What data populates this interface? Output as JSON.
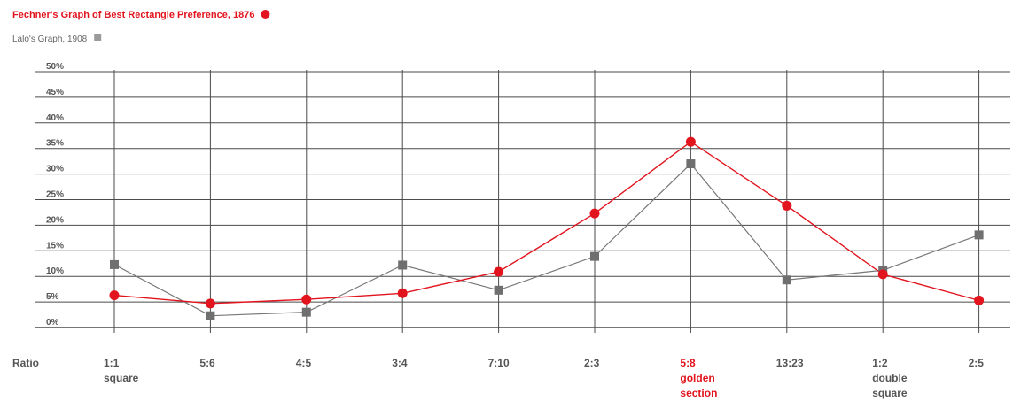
{
  "chart_data": {
    "type": "line",
    "legend": [
      {
        "label": "Fechner's Graph of Best Rectangle Preference, 1876",
        "color": "#e2141e",
        "marker": "circle"
      },
      {
        "label": "Lalo's Graph, 1908",
        "color": "#777777",
        "marker": "square"
      }
    ],
    "legend_placement": "top-left",
    "categories": [
      "1:1",
      "5:6",
      "4:5",
      "3:4",
      "7:10",
      "2:3",
      "5:8",
      "13:23",
      "1:2",
      "2:5"
    ],
    "category_sublabels": [
      "square",
      "",
      "",
      "",
      "",
      "",
      "golden section",
      "",
      "double square",
      ""
    ],
    "highlight_category": "5:8",
    "highlight_color": "#e2141e",
    "xlabel": "Ratio",
    "ylabel": "",
    "ylim": [
      0,
      50
    ],
    "yticks": [
      "0%",
      "5%",
      "10%",
      "15%",
      "20%",
      "25%",
      "30%",
      "35%",
      "40%",
      "45%",
      "50%"
    ],
    "grid": true,
    "series": [
      {
        "name": "Fechner's Graph of Best Rectangle Preference, 1876",
        "color": "#e2141e",
        "marker": "circle",
        "values": [
          6.3,
          4.7,
          5.5,
          6.7,
          10.9,
          22.3,
          36.3,
          23.8,
          10.4,
          5.3
        ]
      },
      {
        "name": "Lalo's Graph, 1908",
        "color": "#777777",
        "marker": "square",
        "values": [
          12.3,
          2.3,
          3.0,
          12.2,
          7.3,
          13.9,
          32.0,
          9.3,
          11.2,
          18.1
        ]
      }
    ]
  }
}
